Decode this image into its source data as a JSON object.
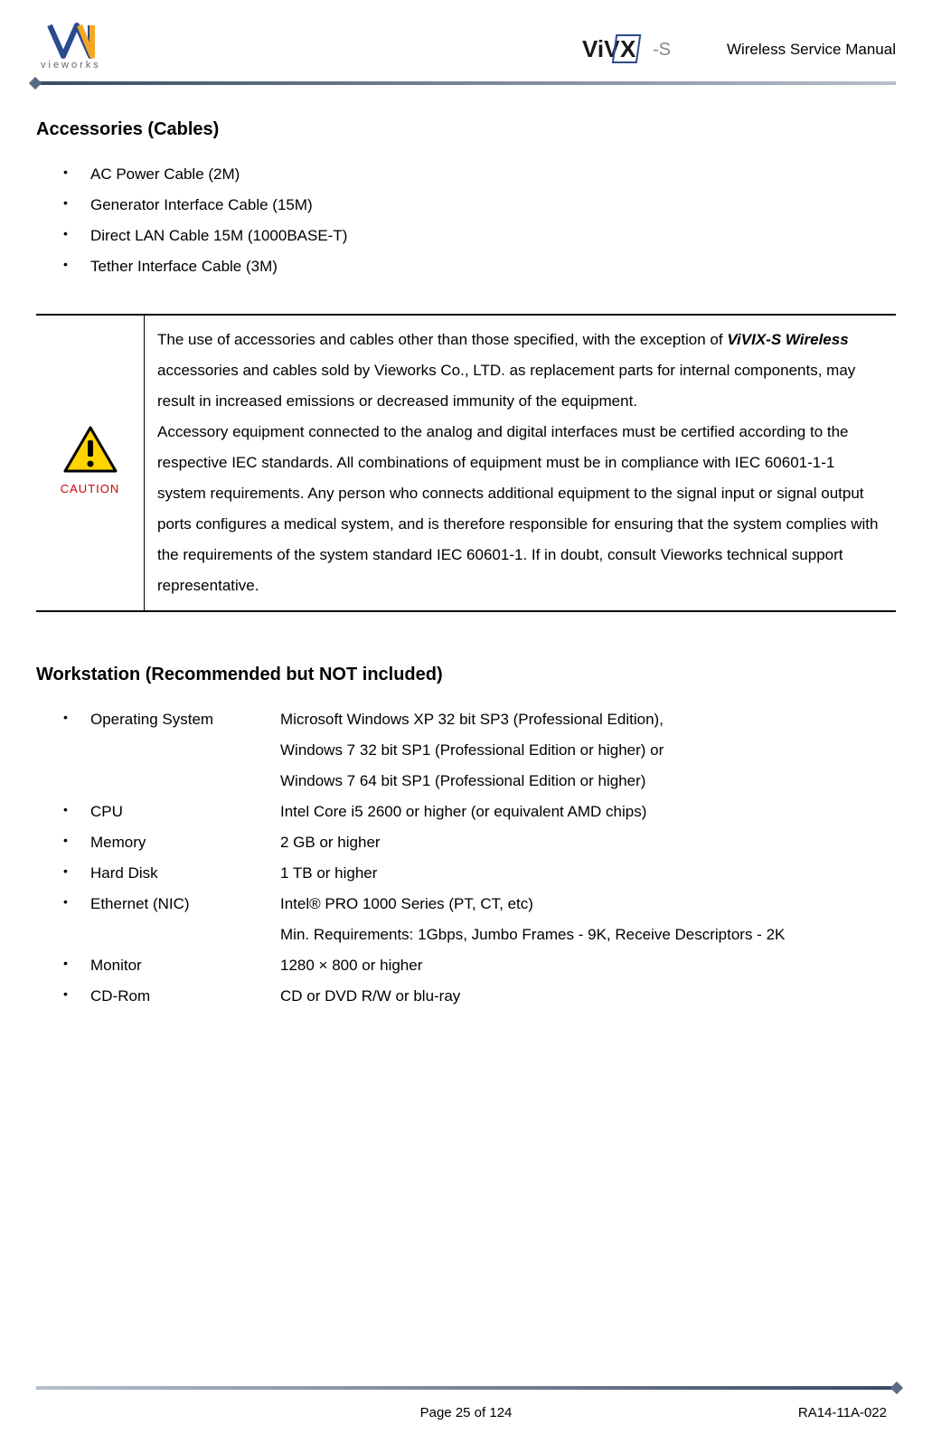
{
  "header": {
    "doc_title": "Wireless Service Manual",
    "logo_left_text": "vieworks",
    "logo_right_text": "ViVIX -S"
  },
  "section1": {
    "heading": "Accessories (Cables)",
    "items": [
      "AC Power Cable (2M)",
      "Generator Interface Cable (15M)",
      "Direct LAN Cable 15M (1000BASE-T)",
      "Tether Interface Cable (3M)"
    ]
  },
  "caution": {
    "label": "CAUTION",
    "icon_bg": "#ffd400",
    "icon_border": "#000000",
    "text_pre": "The use of accessories and cables other than those specified, with the exception of ",
    "text_bold": "ViVIX-S Wireless",
    "text_post": " accessories and cables sold by Vieworks Co., LTD. as replacement parts for internal components, may result in increased emissions or decreased immunity of the equipment.",
    "para2": "Accessory equipment connected to the analog and digital interfaces must be certified according to the respective IEC standards. All combinations of equipment must be in compliance with IEC 60601-1-1 system requirements. Any person who connects additional equipment to the signal input or signal output ports configures a medical system, and is therefore responsible for ensuring that the system complies with the requirements of the system standard IEC 60601-1. If in doubt, consult Vieworks technical support representative."
  },
  "section2": {
    "heading": "Workstation (Recommended but NOT included)",
    "specs": [
      {
        "label": "Operating System",
        "value": "Microsoft Windows XP 32 bit SP3 (Professional Edition),",
        "cont": [
          "Windows 7 32 bit SP1 (Professional Edition or higher) or",
          "Windows 7 64 bit SP1 (Professional Edition or higher)"
        ]
      },
      {
        "label": "CPU",
        "value": "Intel Core i5 2600 or higher (or equivalent AMD chips)"
      },
      {
        "label": "Memory",
        "value": "2 GB or higher"
      },
      {
        "label": "Hard Disk",
        "value": "1 TB or higher"
      },
      {
        "label": "Ethernet (NIC)",
        "value": "Intel® PRO 1000 Series (PT, CT, etc)",
        "cont": [
          "Min. Requirements: 1Gbps, Jumbo Frames - 9K, Receive Descriptors - 2K"
        ]
      },
      {
        "label": "Monitor",
        "value": "1280 × 800 or higher"
      },
      {
        "label": "CD-Rom",
        "value": "CD or DVD R/W or blu-ray"
      }
    ]
  },
  "footer": {
    "page": "Page 25 of 124",
    "doc_code": "RA14-11A-022"
  },
  "colors": {
    "text": "#000000",
    "bg": "#ffffff",
    "rule_dark": "#3a4a63",
    "rule_light": "#b7becb",
    "caution_red": "#cc0000",
    "caution_yellow": "#ffd400"
  }
}
